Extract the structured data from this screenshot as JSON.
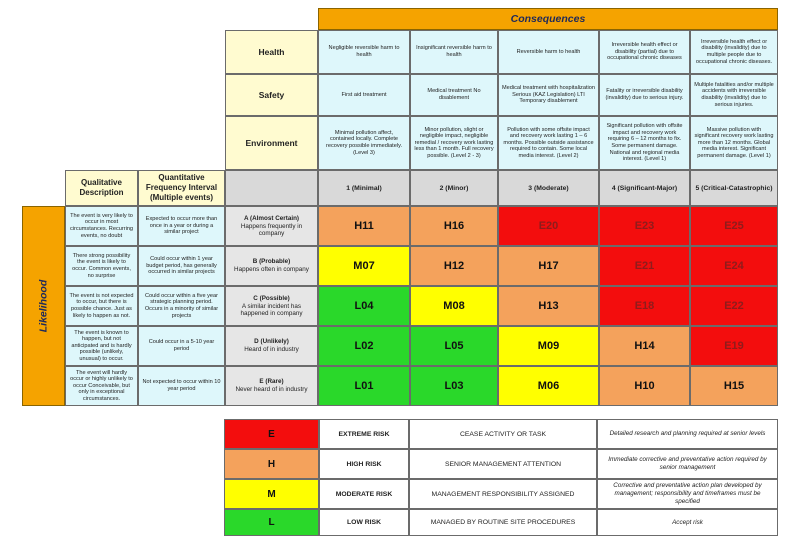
{
  "colors": {
    "extreme": "#f30d0d",
    "high": "#f4a25c",
    "moderate": "#ffff00",
    "low": "#2ad82a",
    "orange_banner": "#f5a300",
    "light_yellow": "#fffbd0",
    "light_blue": "#def7fb",
    "gray": "#d9d9d9"
  },
  "consequences": {
    "title": "Consequences",
    "rows": [
      {
        "label": "Health",
        "cells": [
          "Negligible reversible harm to health",
          "Insignificant reversible harm to health",
          "Reversible harm to health",
          "Irreversible health effect or disability (partial) due to occupational chronic diseases",
          "Irreversible health effect or disability (invalidity) due to multiple people due to occupational chronic diseases."
        ]
      },
      {
        "label": "Safety",
        "cells": [
          "First aid treatment",
          "Medical treatment No disablement",
          "Medical treatment with hospitalization Serious (KAZ Legislation) LTI Temporary disablement",
          "Fatality or irreversible disability (invalidity) due to serious injury.",
          "Multiple fatalities and/or multiple accidents with irreversible disability (invalidity) due to serious injuries."
        ]
      },
      {
        "label": "Environment",
        "cells": [
          "Minimal pollution affect, contained locally. Complete recovery possible immediately. (Level 3)",
          "Minor pollution, slight or negligible impact, negligible remedial / recovery work lasting less than 1 month. Full recovery possible. (Level 2 - 3)",
          "Pollution with some offsite impact and recovery work lasting 1 – 6 months. Possible outside assistance required to contain. Some local media interest. (Level 2)",
          "Significant pollution with offsite impact and recovery work requiring 6 – 12 months to fix. Some permanent damage. National and regional media interest. (Level 1)",
          "Massive pollution with significant recovery work lasting more than 12 months. Global media interest. Significant permanent damage. (Level 1)"
        ]
      }
    ],
    "levels": [
      "1 (Minimal)",
      "2 (Minor)",
      "3 (Moderate)",
      "4 (Significant-Major)",
      "5 (Critical-Catastrophic)"
    ]
  },
  "likelihood": {
    "axis_label": "Likelihood",
    "qual_header": "Qualitative Description",
    "quant_header": "Quantitative Frequency Interval (Multiple events)",
    "rows": [
      {
        "qual": "The event is very likely to occur in most circumstances. Recurring events, no doubt",
        "quant": "Expected to occur more than once in a year or during a similar project",
        "level_title": "A (Almost Certain)",
        "level_desc": "Happens frequently in company",
        "cells": [
          {
            "code": "H11",
            "risk": "high"
          },
          {
            "code": "H16",
            "risk": "high"
          },
          {
            "code": "E20",
            "risk": "extreme"
          },
          {
            "code": "E23",
            "risk": "extreme"
          },
          {
            "code": "E25",
            "risk": "extreme"
          }
        ]
      },
      {
        "qual": "There strong possibility the event is likely to occur. Common events, no surprise",
        "quant": "Could occur within 1 year budget period, has generally occurred in similar projects",
        "level_title": "B (Probable)",
        "level_desc": "Happens often in company",
        "cells": [
          {
            "code": "M07",
            "risk": "moderate"
          },
          {
            "code": "H12",
            "risk": "high"
          },
          {
            "code": "H17",
            "risk": "high"
          },
          {
            "code": "E21",
            "risk": "extreme"
          },
          {
            "code": "E24",
            "risk": "extreme"
          }
        ]
      },
      {
        "qual": "The event is not expected to occur, but there is possible chance. Just as likely to happen as not.",
        "quant": "Could occur within a five year strategic planning period. Occurs in a minority of similar projects",
        "level_title": "C (Possible)",
        "level_desc": "A similar incident has happened in company",
        "cells": [
          {
            "code": "L04",
            "risk": "low"
          },
          {
            "code": "M08",
            "risk": "moderate"
          },
          {
            "code": "H13",
            "risk": "high"
          },
          {
            "code": "E18",
            "risk": "extreme"
          },
          {
            "code": "E22",
            "risk": "extreme"
          }
        ]
      },
      {
        "qual": "The event is known to happen, but not anticipated and is hardly possible (unlikely, unusual) to occur.",
        "quant": "Could occur in a 5-10 year period",
        "level_title": "D (Unlikely)",
        "level_desc": "Heard of in industry",
        "cells": [
          {
            "code": "L02",
            "risk": "low"
          },
          {
            "code": "L05",
            "risk": "low"
          },
          {
            "code": "M09",
            "risk": "moderate"
          },
          {
            "code": "H14",
            "risk": "high"
          },
          {
            "code": "E19",
            "risk": "extreme"
          }
        ]
      },
      {
        "qual": "The event will hardly occur or highly unlikely to occur Conceivable, but only in exceptional circumstances.",
        "quant": "Not expected to occur within 10 year period",
        "level_title": "E (Rare)",
        "level_desc": "Never heard of in industry",
        "cells": [
          {
            "code": "L01",
            "risk": "low"
          },
          {
            "code": "L03",
            "risk": "low"
          },
          {
            "code": "M06",
            "risk": "moderate"
          },
          {
            "code": "H10",
            "risk": "high"
          },
          {
            "code": "H15",
            "risk": "high"
          }
        ]
      }
    ]
  },
  "legend": [
    {
      "letter": "E",
      "risk": "extreme",
      "name": "EXTREME RISK",
      "action": "CEASE ACTIVITY OR TASK",
      "note": "Detailed research and planning required at senior levels"
    },
    {
      "letter": "H",
      "risk": "high",
      "name": "HIGH RISK",
      "action": "SENIOR MANAGEMENT ATTENTION",
      "note": "Immediate corrective and preventative action required by senior management"
    },
    {
      "letter": "M",
      "risk": "moderate",
      "name": "MODERATE RISK",
      "action": "MANAGEMENT RESPONSIBILITY ASSIGNED",
      "note": "Corrective and preventative action plan developed by management; responsibility and timeframes must be specified"
    },
    {
      "letter": "L",
      "risk": "low",
      "name": "LOW RISK",
      "action": "MANAGED BY ROUTINE SITE PROCEDURES",
      "note": "Accept risk"
    }
  ]
}
